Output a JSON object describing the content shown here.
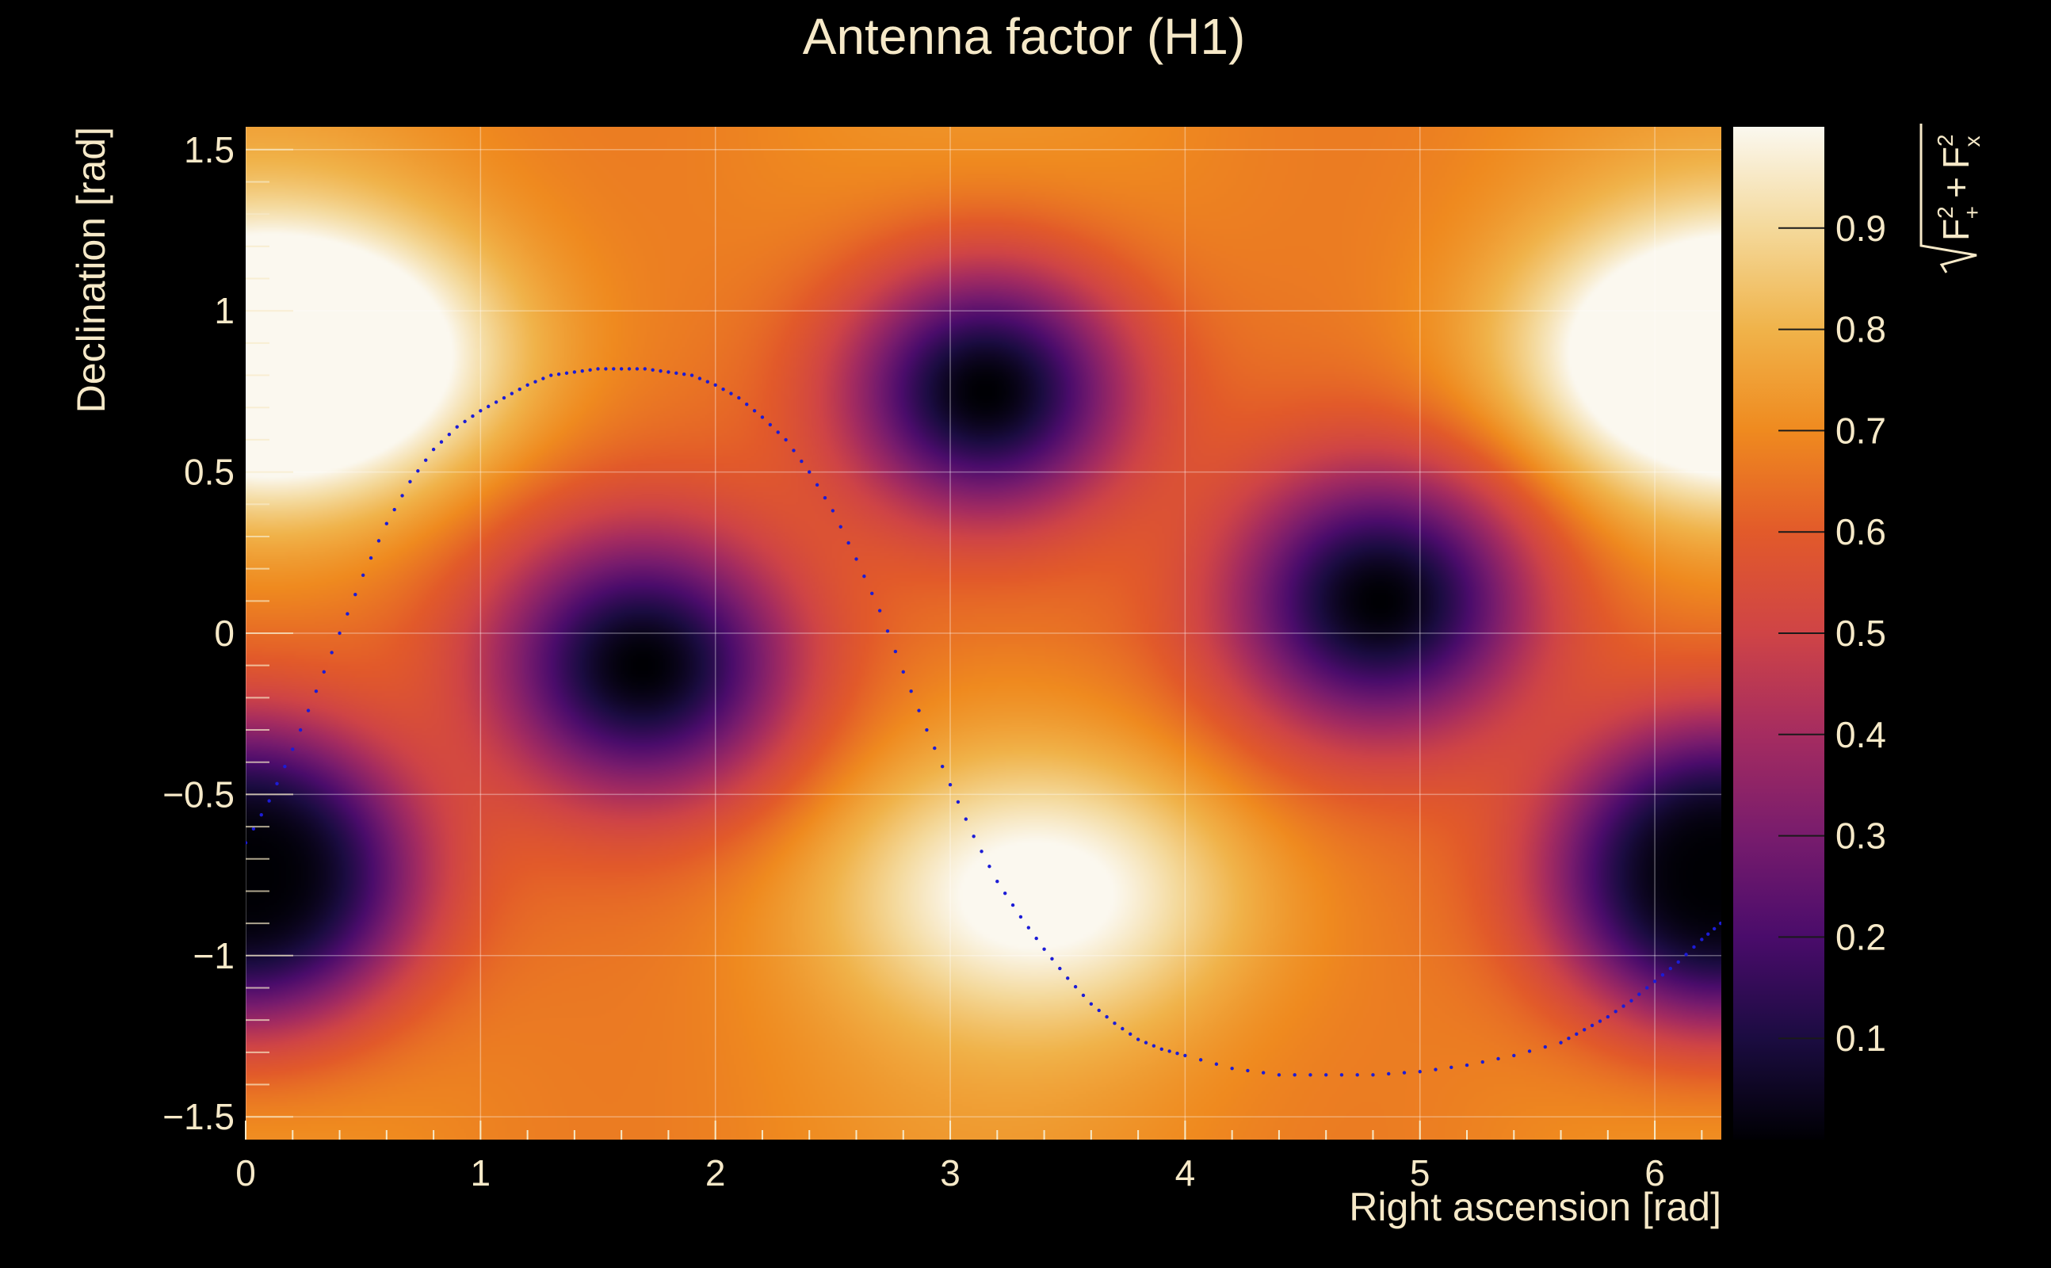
{
  "chart_data": {
    "type": "heatmap",
    "title": "Antenna factor (H1)",
    "xlabel": "Right ascension [rad]",
    "ylabel": "Declination [rad]",
    "zlabel_base": "F",
    "zlabel_sub_plus": "+",
    "zlabel_sub_cross": "x",
    "zlabel_sup": "2",
    "zlabel_op": "+",
    "xlim": [
      0,
      6.2832
    ],
    "ylim": [
      -1.5708,
      1.5708
    ],
    "zlim": [
      0,
      1
    ],
    "x_ticks": [
      0,
      1,
      2,
      3,
      4,
      5,
      6
    ],
    "x_tick_labels": [
      "0",
      "1",
      "2",
      "3",
      "4",
      "5",
      "6"
    ],
    "y_ticks": [
      -1.5,
      -1,
      -0.5,
      0,
      0.5,
      1,
      1.5
    ],
    "y_tick_labels": [
      "−1.5",
      "−1",
      "−0.5",
      "0",
      "0.5",
      "1",
      "1.5"
    ],
    "z_ticks": [
      0.1,
      0.2,
      0.3,
      0.4,
      0.5,
      0.6,
      0.7,
      0.8,
      0.9
    ],
    "z_tick_labels": [
      "0.1",
      "0.2",
      "0.3",
      "0.4",
      "0.5",
      "0.6",
      "0.7",
      "0.8",
      "0.9"
    ],
    "grid": true,
    "colormap": "inferno",
    "colors": {
      "background": "#000000",
      "text": "#f6e9c8",
      "curve": "#1c1cd6",
      "grid": "#ffffff"
    },
    "features": {
      "minima": [
        [
          0.0,
          -0.75
        ],
        [
          1.69,
          -0.1
        ],
        [
          3.15,
          0.75
        ],
        [
          4.83,
          0.1
        ],
        [
          6.28,
          -0.75
        ]
      ],
      "maxima": [
        [
          0.25,
          0.85
        ],
        [
          3.4,
          -0.8
        ],
        [
          6.28,
          0.85
        ]
      ]
    },
    "curve_series": {
      "name": "",
      "x": [
        0.0,
        0.1,
        0.2,
        0.3,
        0.4,
        0.5,
        0.6,
        0.7,
        0.8,
        0.9,
        1.0,
        1.1,
        1.2,
        1.3,
        1.4,
        1.5,
        1.6,
        1.7,
        1.8,
        1.9,
        2.0,
        2.1,
        2.2,
        2.3,
        2.4,
        2.5,
        2.6,
        2.7,
        2.8,
        2.9,
        3.0,
        3.1,
        3.2,
        3.3,
        3.4,
        3.5,
        3.6,
        3.7,
        3.8,
        3.9,
        4.0,
        4.2,
        4.4,
        4.6,
        4.8,
        5.0,
        5.2,
        5.4,
        5.6,
        5.7,
        5.8,
        5.9,
        6.0,
        6.1,
        6.2,
        6.28
      ],
      "y": [
        -0.65,
        -0.52,
        -0.36,
        -0.18,
        0.0,
        0.18,
        0.34,
        0.47,
        0.57,
        0.64,
        0.69,
        0.73,
        0.77,
        0.8,
        0.81,
        0.82,
        0.82,
        0.82,
        0.81,
        0.8,
        0.77,
        0.73,
        0.67,
        0.6,
        0.5,
        0.38,
        0.23,
        0.07,
        -0.12,
        -0.3,
        -0.47,
        -0.63,
        -0.77,
        -0.88,
        -0.98,
        -1.07,
        -1.15,
        -1.21,
        -1.26,
        -1.29,
        -1.31,
        -1.35,
        -1.37,
        -1.37,
        -1.37,
        -1.36,
        -1.34,
        -1.31,
        -1.27,
        -1.23,
        -1.19,
        -1.14,
        -1.08,
        -1.02,
        -0.95,
        -0.9
      ]
    }
  }
}
